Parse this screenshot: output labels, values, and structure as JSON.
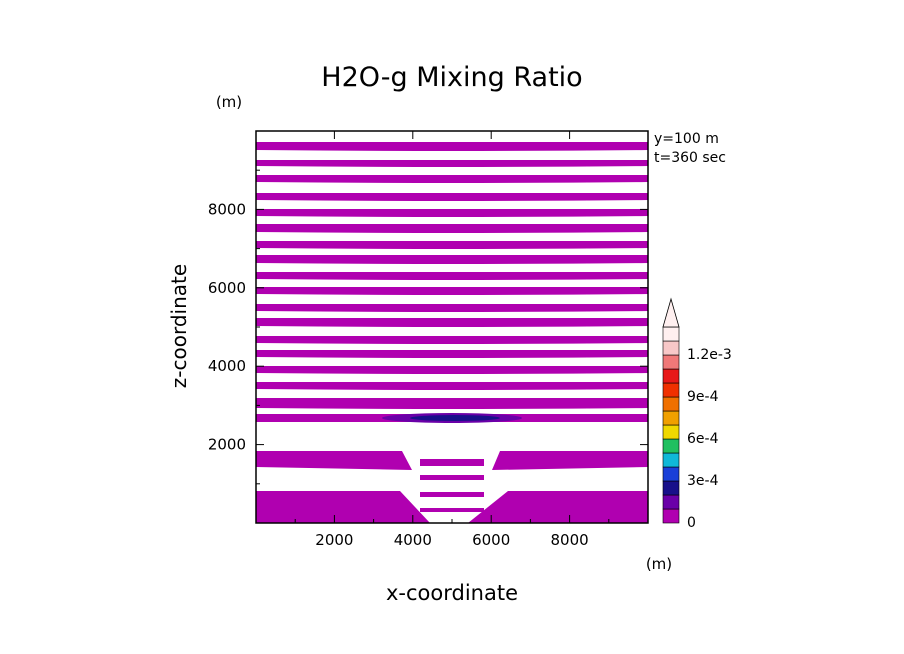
{
  "chart_data": {
    "type": "heatmap",
    "title": "H2O-g Mixing Ratio",
    "xlabel": "x-coordinate",
    "ylabel": "z-coordinate",
    "x_unit": "(m)",
    "y_unit": "(m)",
    "xlim": [
      0,
      10000
    ],
    "ylim": [
      0,
      10000
    ],
    "x_ticks": [
      2000,
      4000,
      6000,
      8000
    ],
    "y_ticks": [
      2000,
      4000,
      6000,
      8000
    ],
    "x_tick_labels": [
      "2000",
      "4000",
      "6000",
      "8000"
    ],
    "y_tick_labels": [
      "2000",
      "4000",
      "6000",
      "8000"
    ],
    "annotations": [
      "y=100 m",
      "t=360 sec"
    ],
    "colorbar": {
      "levels": [
        0,
        0.0001,
        0.0002,
        0.0003,
        0.0004,
        0.0005,
        0.0006,
        0.0007,
        0.0008,
        0.0009,
        0.001,
        0.0011,
        0.0012,
        0.0013
      ],
      "colors": [
        "#b000b0",
        "#6a00a8",
        "#18108a",
        "#1a3fd8",
        "#10b8d8",
        "#20c060",
        "#f0d800",
        "#f0a000",
        "#f07000",
        "#f03000",
        "#e81818",
        "#f07878",
        "#f8c8c8",
        "#fff0f0"
      ],
      "labels": [
        {
          "value": 0,
          "text": "0"
        },
        {
          "value": 0.0003,
          "text": "3e-4"
        },
        {
          "value": 0.0006,
          "text": "6e-4"
        },
        {
          "value": 0.0009,
          "text": "9e-4"
        },
        {
          "value": 0.0012,
          "text": "1.2e-3"
        }
      ],
      "extend": "max"
    },
    "field_description_bands_m": [
      {
        "z": [
          120,
          800
        ],
        "color": "#b000b0"
      },
      {
        "z": [
          1400,
          1900
        ],
        "color": "#b000b0"
      },
      {
        "z": [
          2650,
          2800
        ],
        "color": "#b000b0"
      },
      {
        "z": [
          2680,
          2760
        ],
        "color": "#1a1a8a",
        "x": [
          3400,
          6200
        ]
      }
    ]
  }
}
